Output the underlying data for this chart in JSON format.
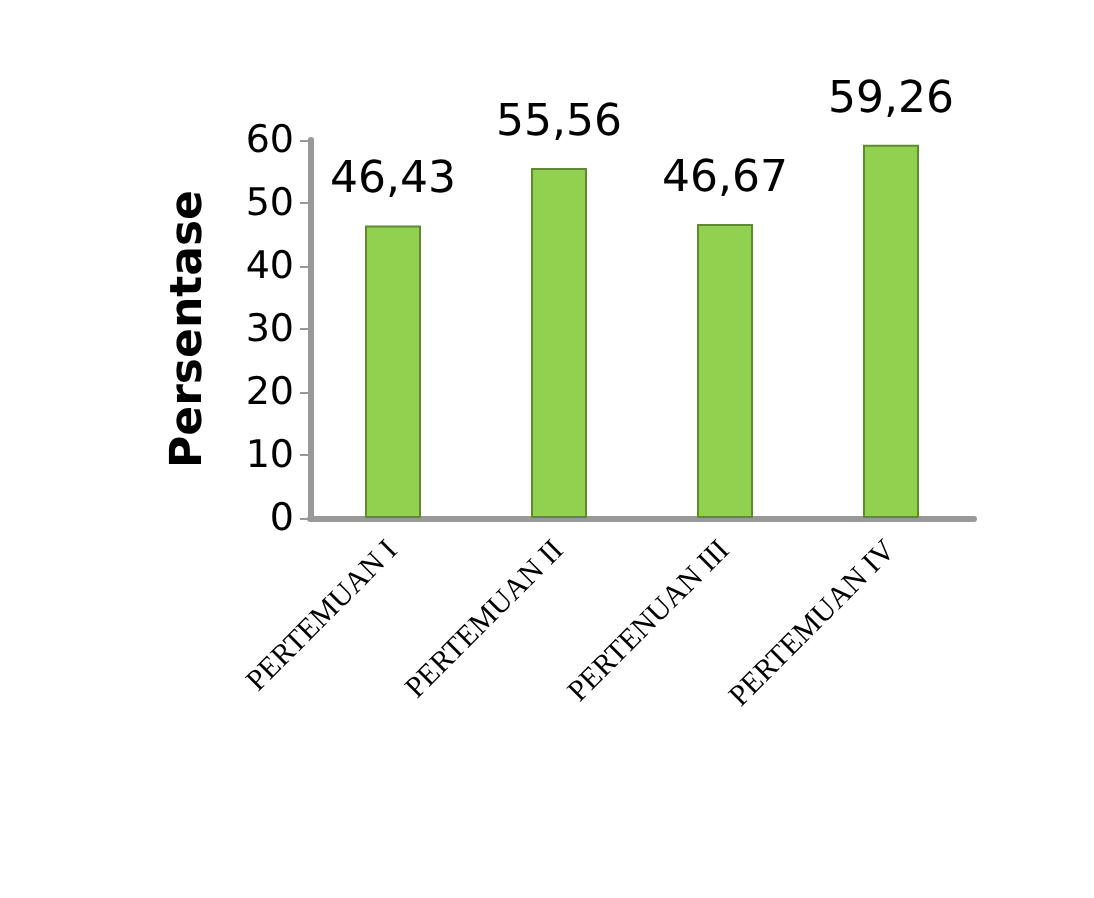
{
  "chart_data": {
    "type": "bar",
    "ylabel": "Persentase",
    "categories": [
      "PERTEMUAN I",
      "PERTEMUAN II",
      "PERTENUAN III",
      "PERTEMUAN IV"
    ],
    "values": [
      46.43,
      55.56,
      46.67,
      59.26
    ],
    "value_labels": [
      "46,43",
      "55,56",
      "46,67",
      "59,26"
    ],
    "color": "#92d050",
    "ylim": [
      0,
      60
    ],
    "yticks": [
      0,
      10,
      20,
      30,
      40,
      50,
      60
    ],
    "grid": false
  }
}
